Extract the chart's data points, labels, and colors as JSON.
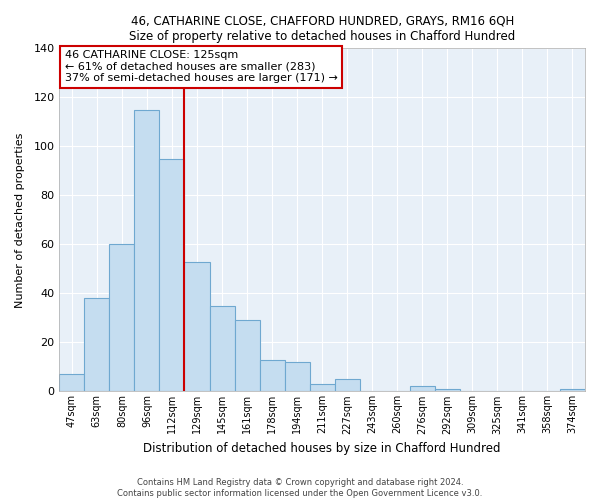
{
  "title1": "46, CATHARINE CLOSE, CHAFFORD HUNDRED, GRAYS, RM16 6QH",
  "title2": "Size of property relative to detached houses in Chafford Hundred",
  "xlabel": "Distribution of detached houses by size in Chafford Hundred",
  "ylabel": "Number of detached properties",
  "categories": [
    "47sqm",
    "63sqm",
    "80sqm",
    "96sqm",
    "112sqm",
    "129sqm",
    "145sqm",
    "161sqm",
    "178sqm",
    "194sqm",
    "211sqm",
    "227sqm",
    "243sqm",
    "260sqm",
    "276sqm",
    "292sqm",
    "309sqm",
    "325sqm",
    "341sqm",
    "358sqm",
    "374sqm"
  ],
  "values": [
    7,
    38,
    60,
    115,
    95,
    53,
    35,
    29,
    13,
    12,
    3,
    5,
    0,
    0,
    2,
    1,
    0,
    0,
    0,
    0,
    1
  ],
  "bar_color": "#c5ddf0",
  "bar_edgecolor": "#6fa8d0",
  "vline_x_index": 4.5,
  "vline_color": "#cc0000",
  "ylim": [
    0,
    140
  ],
  "yticks": [
    0,
    20,
    40,
    60,
    80,
    100,
    120,
    140
  ],
  "annotation_title": "46 CATHARINE CLOSE: 125sqm",
  "annotation_line1": "← 61% of detached houses are smaller (283)",
  "annotation_line2": "37% of semi-detached houses are larger (171) →",
  "annotation_box_facecolor": "#ffffff",
  "annotation_box_edgecolor": "#cc0000",
  "bg_color": "#e8f0f8",
  "grid_color": "#ffffff",
  "footer1": "Contains HM Land Registry data © Crown copyright and database right 2024.",
  "footer2": "Contains public sector information licensed under the Open Government Licence v3.0."
}
